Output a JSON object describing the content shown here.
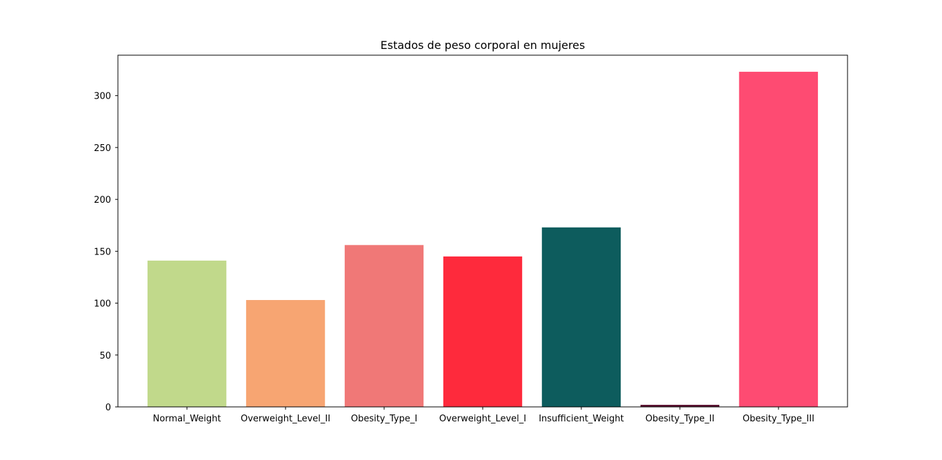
{
  "chart_data": {
    "type": "bar",
    "title": "Estados de peso corporal en mujeres",
    "xlabel": "",
    "ylabel": "",
    "categories": [
      "Normal_Weight",
      "Overweight_Level_II",
      "Obesity_Type_I",
      "Overweight_Level_I",
      "Insufficient_Weight",
      "Obesity_Type_II",
      "Obesity_Type_III"
    ],
    "values": [
      141,
      103,
      156,
      145,
      173,
      2,
      323
    ],
    "colors": [
      "#c1d98b",
      "#f7a572",
      "#f07877",
      "#fe2a3c",
      "#0d5c5d",
      "#5c1432",
      "#fe4b72"
    ],
    "ylim": [
      0,
      339
    ],
    "yticks": [
      0,
      50,
      100,
      150,
      200,
      250,
      300
    ],
    "grid": false,
    "legend": "none"
  }
}
